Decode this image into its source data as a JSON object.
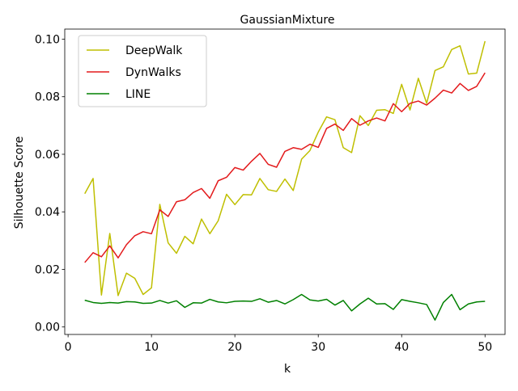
{
  "chart_data": {
    "type": "line",
    "title": "GaussianMixture",
    "xlabel": "k",
    "ylabel": "Silhouette Score",
    "xlim": [
      -0.4,
      52.4
    ],
    "ylim": [
      -0.0026,
      0.1035
    ],
    "xticks": [
      0,
      10,
      20,
      30,
      40,
      50
    ],
    "yticks": [
      0.0,
      0.02,
      0.04,
      0.06,
      0.08,
      0.1
    ],
    "ytick_labels": [
      "0.00",
      "0.02",
      "0.04",
      "0.06",
      "0.08",
      "0.10"
    ],
    "grid": false,
    "legend_position": "top-left",
    "x": [
      2,
      3,
      4,
      5,
      6,
      7,
      8,
      9,
      10,
      11,
      12,
      13,
      14,
      15,
      16,
      17,
      18,
      19,
      20,
      21,
      22,
      23,
      24,
      25,
      26,
      27,
      28,
      29,
      30,
      31,
      32,
      33,
      34,
      35,
      36,
      37,
      38,
      39,
      40,
      41,
      42,
      43,
      44,
      45,
      46,
      47,
      48,
      49,
      50
    ],
    "series": [
      {
        "name": "DeepWalk",
        "color": "#bfbf00",
        "values": [
          0.0463,
          0.0516,
          0.0111,
          0.0325,
          0.0109,
          0.0187,
          0.0169,
          0.0113,
          0.0136,
          0.0426,
          0.0292,
          0.0256,
          0.0315,
          0.0289,
          0.0375,
          0.0324,
          0.0369,
          0.0461,
          0.0425,
          0.046,
          0.0459,
          0.0516,
          0.0477,
          0.0471,
          0.0514,
          0.0474,
          0.0583,
          0.0613,
          0.0677,
          0.073,
          0.072,
          0.0623,
          0.0606,
          0.0734,
          0.07,
          0.0753,
          0.0755,
          0.0742,
          0.0843,
          0.0754,
          0.0864,
          0.0777,
          0.0891,
          0.0904,
          0.0964,
          0.0977,
          0.0879,
          0.0882,
          0.0993
        ]
      },
      {
        "name": "DynWalks",
        "color": "#e31a1c",
        "values": [
          0.0224,
          0.0258,
          0.0244,
          0.0282,
          0.024,
          0.0286,
          0.0317,
          0.0331,
          0.0324,
          0.0407,
          0.0384,
          0.0435,
          0.0442,
          0.0467,
          0.0481,
          0.0447,
          0.0508,
          0.052,
          0.0554,
          0.0545,
          0.0576,
          0.0603,
          0.0565,
          0.0555,
          0.061,
          0.0623,
          0.0617,
          0.0635,
          0.0624,
          0.069,
          0.0705,
          0.0683,
          0.0724,
          0.0701,
          0.0716,
          0.0726,
          0.0716,
          0.0776,
          0.0748,
          0.0777,
          0.0785,
          0.0771,
          0.0795,
          0.0823,
          0.0813,
          0.0846,
          0.0822,
          0.0836,
          0.0883
        ]
      },
      {
        "name": "LINE",
        "color": "#008000",
        "values": [
          0.0093,
          0.0085,
          0.0082,
          0.0085,
          0.0083,
          0.0088,
          0.0087,
          0.0082,
          0.0083,
          0.0092,
          0.0083,
          0.0091,
          0.0068,
          0.0084,
          0.0083,
          0.0096,
          0.0087,
          0.0084,
          0.0089,
          0.009,
          0.0089,
          0.0098,
          0.0086,
          0.0092,
          0.008,
          0.0095,
          0.0113,
          0.0094,
          0.009,
          0.0096,
          0.0076,
          0.0092,
          0.0056,
          0.008,
          0.01,
          0.008,
          0.0081,
          0.0061,
          0.0095,
          0.0089,
          0.0084,
          0.0078,
          0.0024,
          0.0085,
          0.0113,
          0.006,
          0.008,
          0.0087,
          0.0089
        ]
      }
    ]
  }
}
